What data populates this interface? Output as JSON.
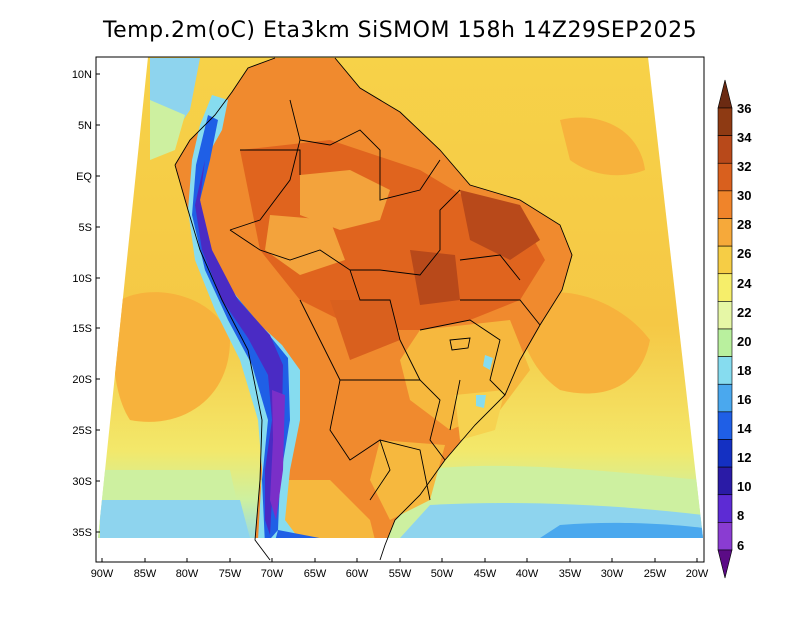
{
  "title": "Temp.2m(oC) Eta3km SiSMOM 158h 14Z29SEP2025",
  "map": {
    "lat_labels": [
      "10N",
      "5N",
      "EQ",
      "5S",
      "10S",
      "15S",
      "20S",
      "25S",
      "30S",
      "35S"
    ],
    "lon_labels": [
      "90W",
      "85W",
      "80W",
      "75W",
      "70W",
      "65W",
      "60W",
      "55W",
      "50W",
      "45W",
      "40W",
      "35W",
      "30W",
      "25W",
      "20W"
    ]
  },
  "colorbar": {
    "labels": [
      "36",
      "34",
      "32",
      "30",
      "28",
      "26",
      "24",
      "22",
      "20",
      "18",
      "16",
      "14",
      "12",
      "10",
      "8",
      "6"
    ],
    "colors": [
      "#6b2a12",
      "#8e3a13",
      "#b8491a",
      "#d9601e",
      "#f0842a",
      "#f6a93a",
      "#f6cd45",
      "#f6ee6a",
      "#e6f7a6",
      "#b9f09e",
      "#86dcef",
      "#4aa8ee",
      "#1f5fe6",
      "#1430c2",
      "#2a1ba6",
      "#5d2bd4",
      "#8a3cd2",
      "#5b0b86"
    ]
  }
}
